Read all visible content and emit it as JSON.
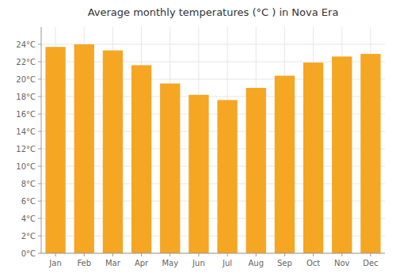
{
  "chart_data": {
    "type": "bar",
    "title": "Average monthly temperatures (°C ) in Nova Era",
    "categories": [
      "Jan",
      "Feb",
      "Mar",
      "Apr",
      "May",
      "Jun",
      "Jul",
      "Aug",
      "Sep",
      "Oct",
      "Nov",
      "Dec"
    ],
    "values": [
      23.7,
      24.0,
      23.3,
      21.6,
      19.5,
      18.2,
      17.6,
      19.0,
      20.4,
      21.9,
      22.6,
      22.9
    ],
    "color": "#F5A623",
    "ylim": [
      0,
      26
    ],
    "yticks": [
      {
        "value": 0,
        "label": "0°C"
      },
      {
        "value": 2,
        "label": "2°C"
      },
      {
        "value": 4,
        "label": "4°C"
      },
      {
        "value": 6,
        "label": "6°C"
      },
      {
        "value": 8,
        "label": "8°C"
      },
      {
        "value": 10,
        "label": "10°C"
      },
      {
        "value": 12,
        "label": "12°C"
      },
      {
        "value": 14,
        "label": "14°C"
      },
      {
        "value": 16,
        "label": "16°C"
      },
      {
        "value": 18,
        "label": "18°C"
      },
      {
        "value": 20,
        "label": "20°C"
      },
      {
        "value": 22,
        "label": "22°C"
      },
      {
        "value": 24,
        "label": "24°C"
      }
    ],
    "grid": true
  }
}
